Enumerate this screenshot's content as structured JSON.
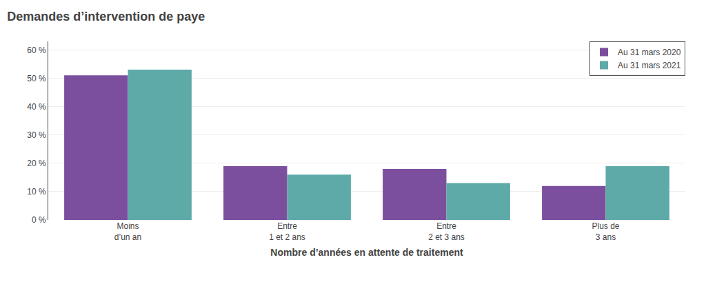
{
  "chart_data": {
    "type": "bar",
    "title": "Demandes d’intervention de paye",
    "xlabel": "Nombre d’années en attente de traitement",
    "categories": [
      "Moins\nd’un an",
      "Entre\n1 et 2 ans",
      "Entre\n2 et 3 ans",
      "Plus de\n3 ans"
    ],
    "series": [
      {
        "name": "Au 31 mars 2020",
        "color": "#7B4F9E",
        "values": [
          51,
          19,
          18,
          12
        ]
      },
      {
        "name": "Au 31 mars 2021",
        "color": "#5EAAA8",
        "values": [
          53,
          16,
          13,
          19
        ]
      }
    ],
    "ylim": [
      0,
      63
    ],
    "yticks": [
      {
        "value": 0,
        "label": "0 %"
      },
      {
        "value": 10,
        "label": "10 %"
      },
      {
        "value": 20,
        "label": "20 %"
      },
      {
        "value": 30,
        "label": "30 %"
      },
      {
        "value": 40,
        "label": "40 %"
      },
      {
        "value": 50,
        "label": "50 %"
      },
      {
        "value": 60,
        "label": "60 %"
      }
    ],
    "grid": true,
    "legend": "upper right"
  }
}
